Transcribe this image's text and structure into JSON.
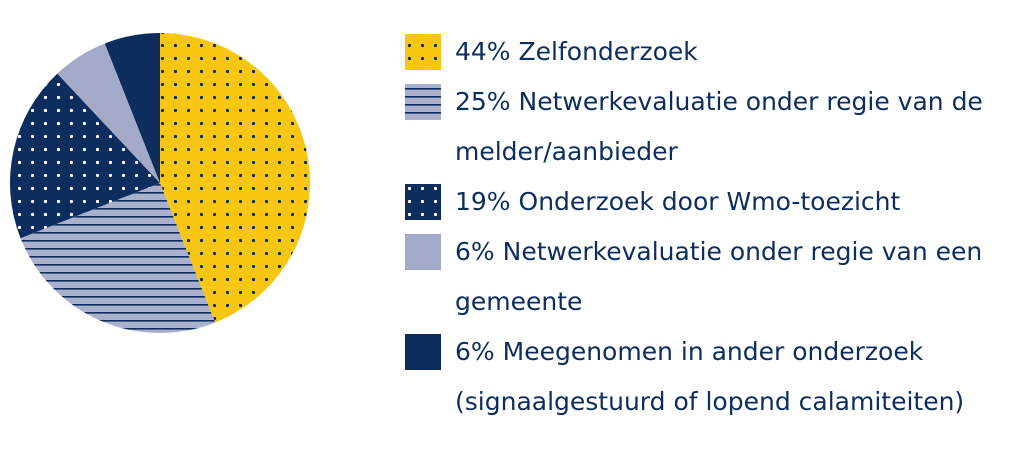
{
  "chart_data": {
    "type": "pie",
    "categories": [
      "Zelfonderzoek",
      "Netwerkevaluatie onder regie van de melder/aanbieder",
      "Onderzoek door Wmo-toezicht",
      "Netwerkevaluatie onder regie van een gemeente",
      "Meegenomen in ander onderzoek (signaalgestuurd of lopend calamiteiten)"
    ],
    "values": [
      44,
      25,
      19,
      6,
      6
    ],
    "value_labels": [
      "44%",
      "25%",
      "19%",
      "6%",
      "6%"
    ],
    "colors": [
      "#f9c712",
      "#a9b0cc",
      "#0c2d5e",
      "#a3aac8",
      "#0c2d5e"
    ],
    "patterns": [
      "dots",
      "lines",
      "dots",
      "solid",
      "solid"
    ],
    "legend": "right"
  }
}
